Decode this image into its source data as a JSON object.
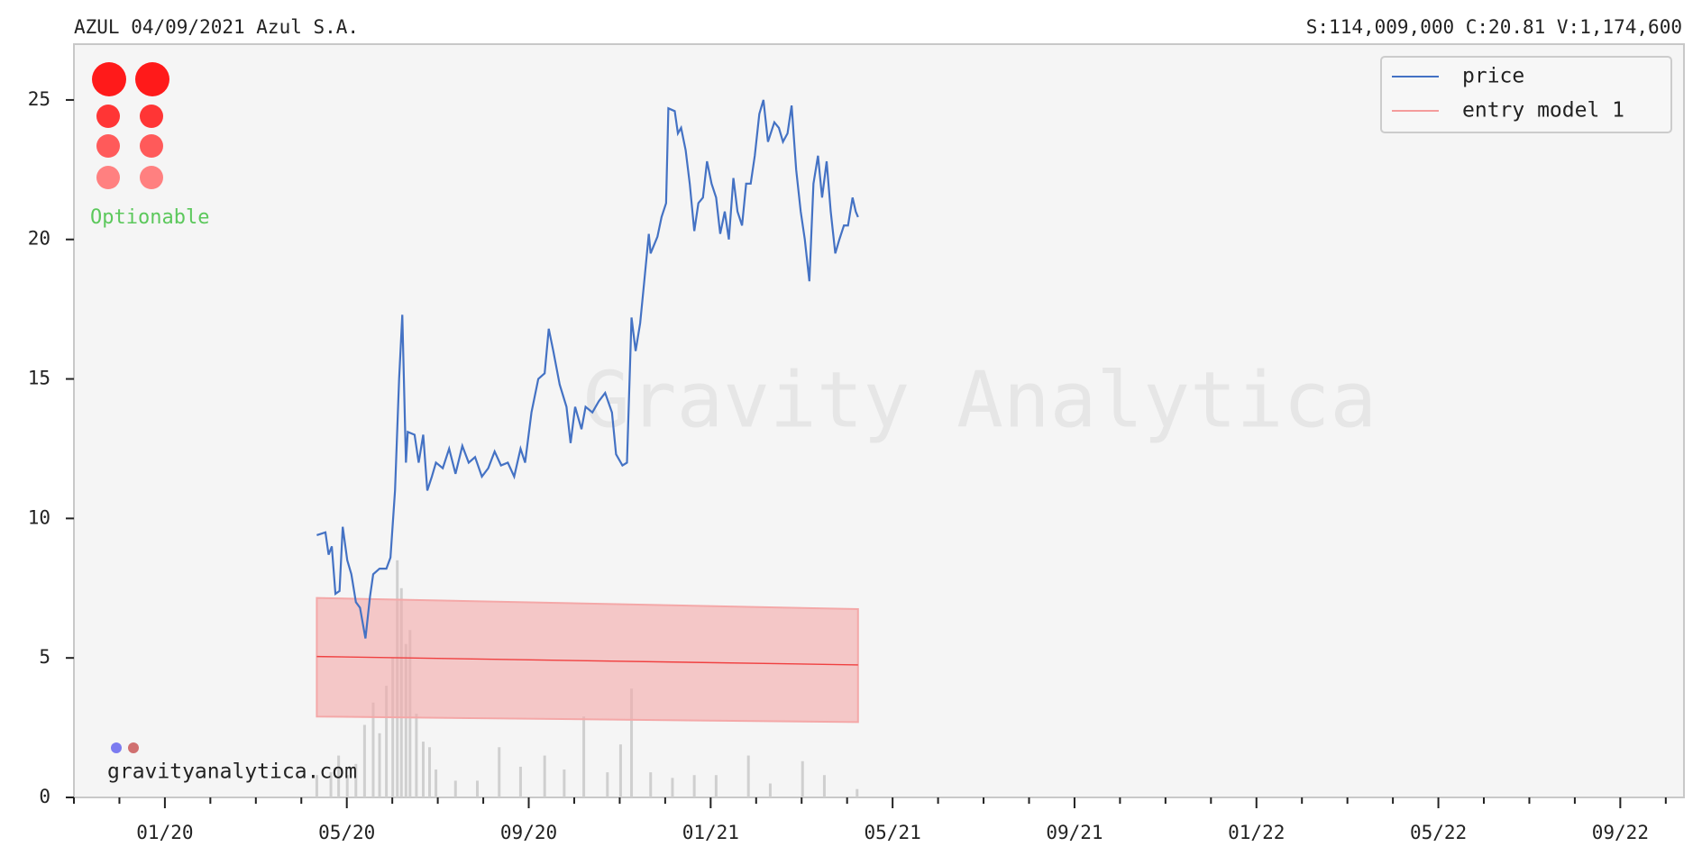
{
  "chart_data": {
    "type": "line",
    "header_left": "AZUL 04/09/2021  Azul S.A.",
    "header_right": "S:114,009,000 C:20.81 V:1,174,600",
    "badge": "Optionable",
    "watermark": "Gravity Analytica",
    "footer": "gravityanalytica.com",
    "xlim": [
      0,
      35.4
    ],
    "ylim": [
      0,
      27
    ],
    "yticks": [
      0,
      5,
      10,
      15,
      20,
      25
    ],
    "xticks": [
      {
        "value": 2,
        "label": "01/20"
      },
      {
        "value": 6,
        "label": "05/20"
      },
      {
        "value": 10,
        "label": "09/20"
      },
      {
        "value": 14,
        "label": "01/21"
      },
      {
        "value": 18,
        "label": "05/21"
      },
      {
        "value": 22,
        "label": "09/21"
      },
      {
        "value": 26,
        "label": "01/22"
      },
      {
        "value": 30,
        "label": "05/22"
      },
      {
        "value": 34,
        "label": "09/22"
      }
    ],
    "xminorticks": [
      0,
      1,
      3,
      4,
      5,
      7,
      8,
      9,
      11,
      12,
      13,
      15,
      16,
      17,
      19,
      20,
      21,
      23,
      24,
      25,
      27,
      28,
      29,
      31,
      32,
      33,
      35
    ],
    "legend": "upper right",
    "series": [
      {
        "name": "price",
        "color": "#4472c4",
        "x": [
          5.34,
          5.53,
          5.6,
          5.67,
          5.75,
          5.84,
          5.91,
          6.01,
          6.1,
          6.2,
          6.29,
          6.41,
          6.51,
          6.58,
          6.72,
          6.87,
          6.96,
          7.06,
          7.15,
          7.22,
          7.3,
          7.34,
          7.49,
          7.58,
          7.68,
          7.77,
          7.87,
          7.96,
          8.11,
          8.25,
          8.39,
          8.54,
          8.68,
          8.82,
          8.97,
          9.11,
          9.25,
          9.39,
          9.54,
          9.68,
          9.82,
          9.92,
          10.06,
          10.21,
          10.35,
          10.44,
          10.54,
          10.68,
          10.83,
          10.92,
          11.02,
          11.16,
          11.25,
          11.4,
          11.54,
          11.68,
          11.83,
          11.92,
          12.06,
          12.16,
          12.26,
          12.35,
          12.45,
          12.54,
          12.64,
          12.68,
          12.83,
          12.92,
          13.02,
          13.07,
          13.21,
          13.28,
          13.35,
          13.45,
          13.54,
          13.64,
          13.73,
          13.83,
          13.92,
          14.02,
          14.12,
          14.21,
          14.31,
          14.4,
          14.5,
          14.59,
          14.69,
          14.78,
          14.88,
          14.97,
          15.07,
          15.16,
          15.26,
          15.4,
          15.5,
          15.59,
          15.69,
          15.78,
          15.88,
          15.98,
          16.07,
          16.17,
          16.26,
          16.36,
          16.45,
          16.55,
          16.64,
          16.74,
          16.83,
          16.93,
          17.02,
          17.12,
          17.19,
          17.24
        ],
        "values": [
          9.4,
          9.5,
          8.7,
          9.0,
          7.3,
          7.4,
          9.7,
          8.5,
          8.0,
          7.0,
          6.8,
          5.7,
          7.2,
          8.0,
          8.2,
          8.2,
          8.6,
          11.0,
          15.0,
          17.3,
          12.0,
          13.1,
          13.0,
          12.0,
          13.0,
          11.0,
          11.5,
          12.0,
          11.8,
          12.5,
          11.6,
          12.6,
          12.0,
          12.2,
          11.5,
          11.8,
          12.4,
          11.9,
          12.0,
          11.5,
          12.5,
          12.0,
          13.8,
          15.0,
          15.2,
          16.8,
          16.0,
          14.8,
          14.0,
          12.7,
          14.0,
          13.2,
          14.0,
          13.8,
          14.2,
          14.5,
          13.8,
          12.3,
          11.9,
          12.0,
          17.2,
          16.0,
          17.0,
          18.5,
          20.2,
          19.5,
          20.1,
          20.8,
          21.3,
          24.7,
          24.6,
          23.8,
          24.0,
          23.2,
          22.0,
          20.3,
          21.3,
          21.5,
          22.8,
          22.0,
          21.5,
          20.2,
          21.0,
          20.0,
          22.2,
          21.0,
          20.5,
          22.0,
          22.0,
          23.0,
          24.5,
          25.0,
          23.5,
          24.2,
          24.0,
          23.5,
          23.8,
          24.8,
          22.5,
          21.0,
          20.0,
          18.5,
          22.0,
          23.0,
          21.5,
          22.8,
          21.0,
          19.5,
          20.0,
          20.5,
          20.5,
          21.5,
          21.0,
          20.8
        ]
      },
      {
        "name": "entry model 1",
        "color": "#f04040",
        "x": [
          5.34,
          17.24
        ],
        "values": [
          5.05,
          4.75
        ]
      }
    ],
    "band": {
      "color": "#f4a8a8",
      "x": [
        5.34,
        17.24
      ],
      "upper": [
        7.15,
        6.75
      ],
      "lower": [
        2.9,
        2.7
      ]
    },
    "volume": {
      "color": "#cfcfcf",
      "x": [
        5.34,
        5.65,
        5.82,
        6.01,
        6.2,
        6.39,
        6.58,
        6.72,
        6.87,
        7.01,
        7.11,
        7.2,
        7.3,
        7.39,
        7.53,
        7.68,
        7.82,
        7.96,
        8.39,
        8.87,
        9.35,
        9.82,
        10.35,
        10.78,
        11.21,
        11.73,
        12.02,
        12.26,
        12.68,
        13.16,
        13.64,
        14.12,
        14.83,
        15.31,
        16.02,
        16.5,
        17.22
      ],
      "values": [
        0.8,
        0.9,
        1.5,
        0.8,
        1.2,
        2.6,
        3.4,
        2.3,
        4.0,
        5.0,
        8.5,
        7.5,
        5.5,
        6.0,
        3.0,
        2.0,
        1.8,
        1.0,
        0.6,
        0.6,
        1.8,
        1.1,
        1.5,
        1.0,
        2.9,
        0.9,
        1.9,
        3.9,
        0.9,
        0.7,
        0.8,
        0.8,
        1.5,
        0.5,
        1.3,
        0.8,
        0.3
      ]
    }
  }
}
